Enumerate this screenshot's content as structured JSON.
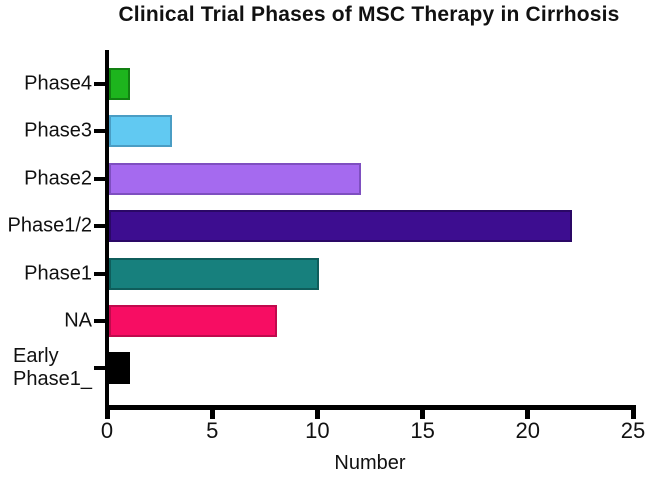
{
  "title": "Clinical Trial Phases of MSC Therapy in Cirrhosis",
  "chart_data": {
    "type": "bar",
    "orientation": "horizontal",
    "title": "Clinical Trial Phases of MSC Therapy in Cirrhosis",
    "categories": [
      "Phase4",
      "Phase3",
      "Phase2",
      "Phase1/2",
      "Phase1",
      "NA",
      "Early\nPhase1_"
    ],
    "values": [
      1,
      3,
      12,
      22,
      10,
      8,
      1
    ],
    "bar_colors": [
      "#1DB51D",
      "#61C9F2",
      "#A56AEF",
      "#3D0D90",
      "#17807D",
      "#F70D63",
      "#000000"
    ],
    "bar_border_colors": [
      "#128012",
      "#4A9DC4",
      "#7E4FC0",
      "#2A0866",
      "#0F5D5B",
      "#C00A4D",
      "#000000"
    ],
    "xlabel": "Number",
    "ylabel": "",
    "xlim": [
      0,
      25
    ],
    "xticks": [
      0,
      5,
      10,
      15,
      20,
      25
    ],
    "grid": false,
    "legend": null,
    "axis_color": "#000000",
    "background_color": "#FFFFFF"
  }
}
